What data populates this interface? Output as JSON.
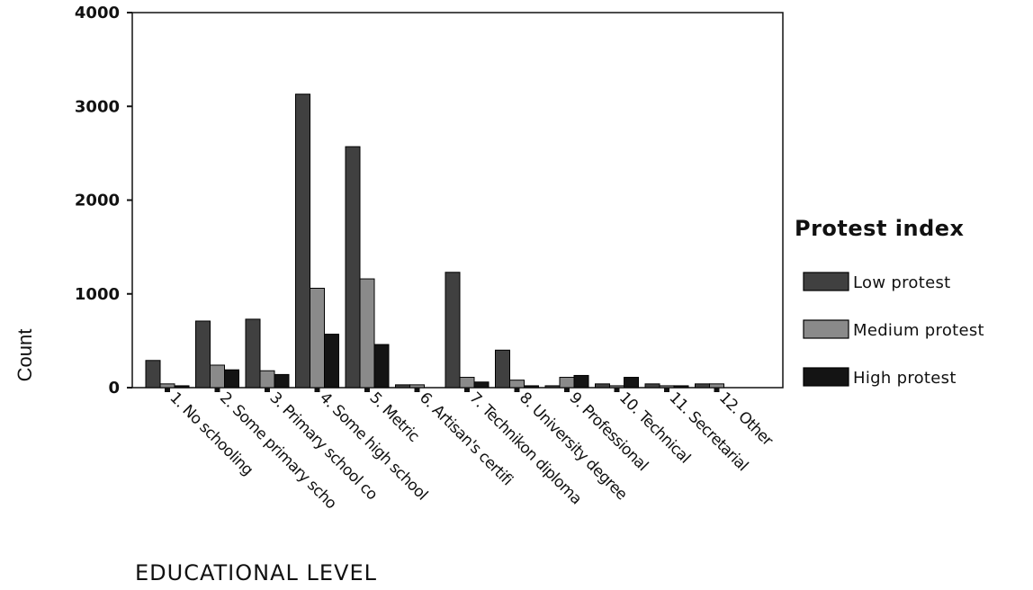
{
  "chart_data": {
    "type": "bar",
    "xlabel": "EDUCATIONAL LEVEL",
    "ylabel": "Count",
    "ylim": [
      0,
      4000
    ],
    "yticks": [
      "0",
      "1000",
      "2000",
      "3000",
      "4000"
    ],
    "grid": false,
    "legend_position": "right",
    "legend_title": "Protest index",
    "categories": [
      "1. No schooling",
      "2. Some primary scho",
      "3. Primary school co",
      "4. Some high school",
      "5. Metric",
      "6. Artisan's certifi",
      "7. Technikon diploma",
      "8. University degree",
      "9. Professional",
      "10. Technical",
      "11. Secretarial",
      "12. Other"
    ],
    "series": [
      {
        "name": "Low  protest",
        "color": "#404040",
        "values": [
          290,
          710,
          730,
          3130,
          2570,
          30,
          1230,
          400,
          20,
          40,
          40,
          40
        ]
      },
      {
        "name": "Medium protest",
        "color": "#8a8a8a",
        "values": [
          40,
          240,
          180,
          1060,
          1160,
          30,
          110,
          80,
          110,
          20,
          20,
          40
        ]
      },
      {
        "name": "High protest",
        "color": "#141414",
        "values": [
          20,
          190,
          140,
          570,
          460,
          0,
          60,
          20,
          130,
          110,
          20,
          0
        ]
      }
    ]
  }
}
